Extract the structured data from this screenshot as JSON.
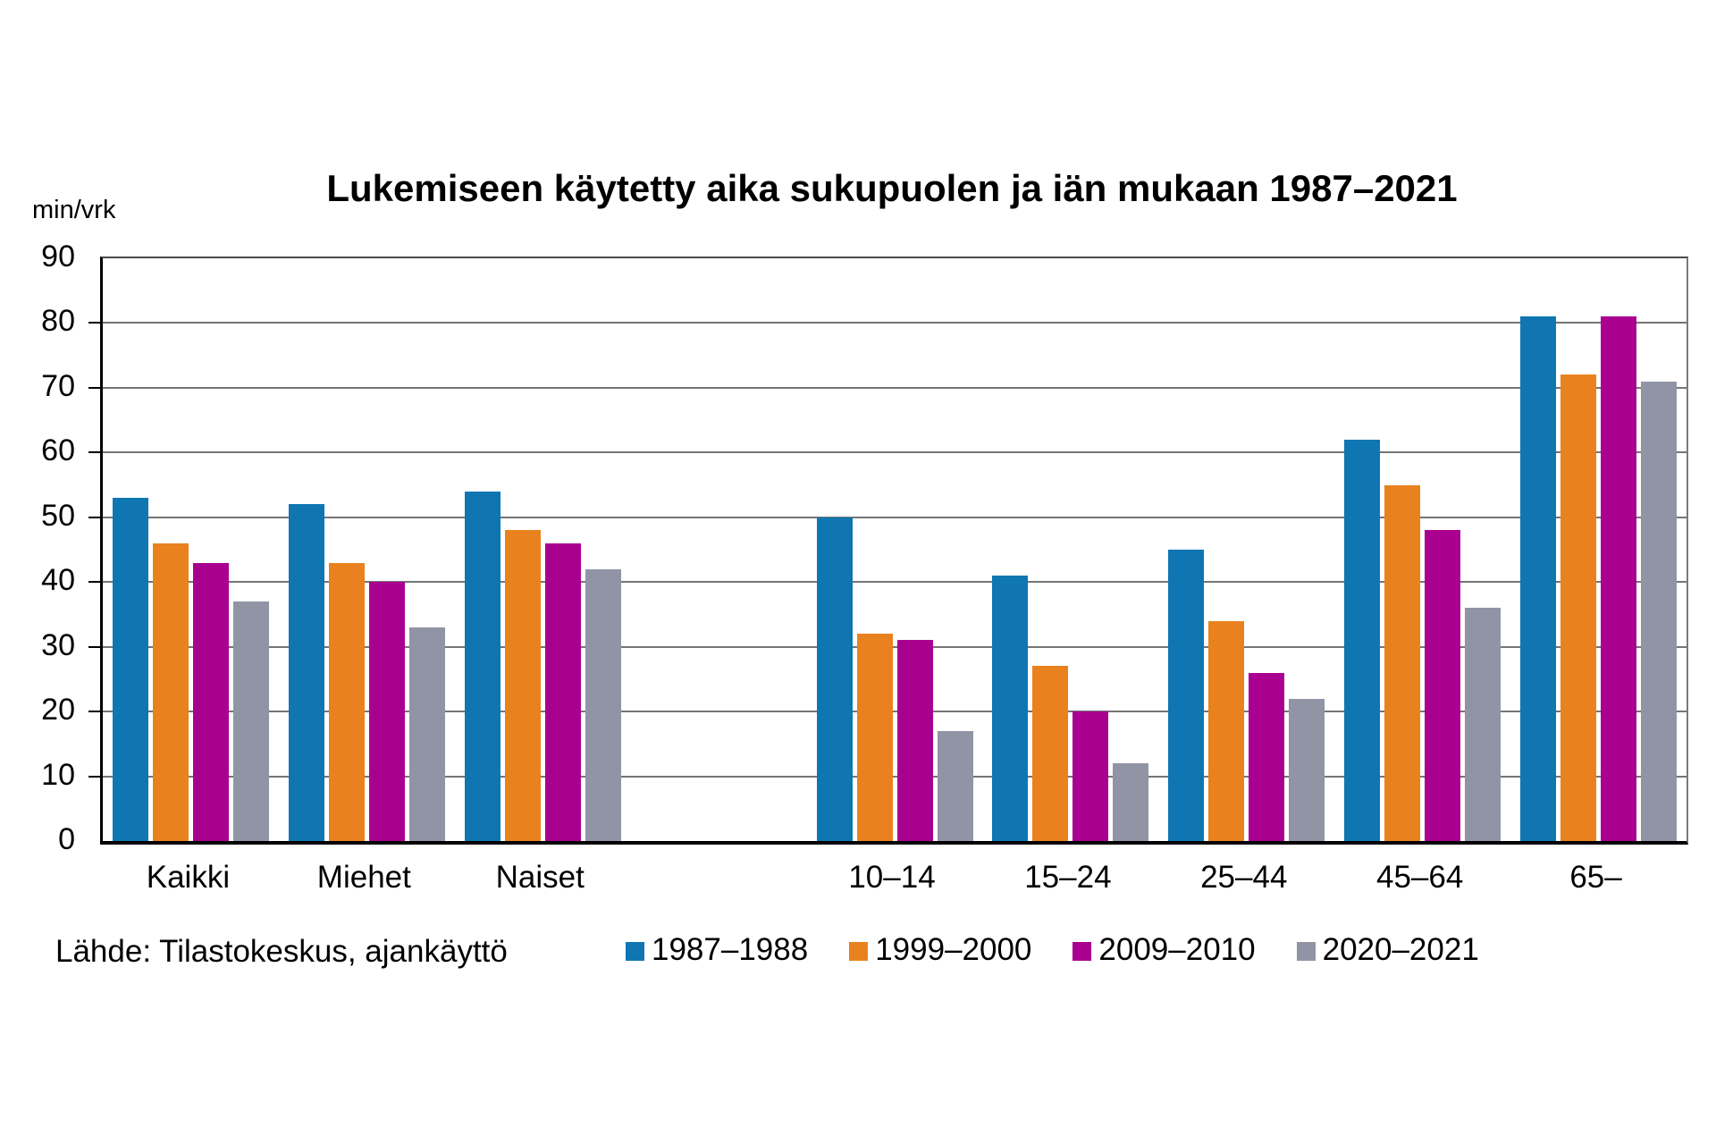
{
  "page": {
    "background": "#ffffff"
  },
  "chart_data": {
    "type": "bar",
    "title": "Lukemiseen käytetty aika sukupuolen ja iän mukaan 1987–2021",
    "y_unit_label": "min/vrk",
    "xlabel": "",
    "ylabel": "min/vrk",
    "ylim": [
      0,
      90
    ],
    "yticks": [
      0,
      10,
      20,
      30,
      40,
      50,
      60,
      70,
      80,
      90
    ],
    "grid": true,
    "legend_position": "bottom",
    "source_note": "Lähde: Tilastokeskus, ajankäyttö",
    "categories": [
      "Kaikki",
      "Miehet",
      "Naiset",
      "10–14",
      "15–24",
      "25–44",
      "45–64",
      "65–"
    ],
    "category_slots": [
      0,
      1,
      2,
      4,
      5,
      6,
      7,
      8
    ],
    "slot_count": 9,
    "series": [
      {
        "name": "1987–1988",
        "color": "#0f76b2",
        "values": [
          53,
          52,
          54,
          50,
          41,
          45,
          62,
          81
        ]
      },
      {
        "name": "1999–2000",
        "color": "#e9821e",
        "values": [
          46,
          43,
          48,
          32,
          27,
          34,
          55,
          72
        ]
      },
      {
        "name": "2009–2010",
        "color": "#aa0090",
        "values": [
          43,
          40,
          46,
          31,
          20,
          26,
          48,
          81
        ]
      },
      {
        "name": "2020–2021",
        "color": "#9194a4",
        "values": [
          37,
          33,
          42,
          17,
          12,
          22,
          36,
          71
        ]
      }
    ],
    "style_colors": {
      "gridline": "#757575",
      "axis": "#000000",
      "text": "#000000"
    }
  }
}
